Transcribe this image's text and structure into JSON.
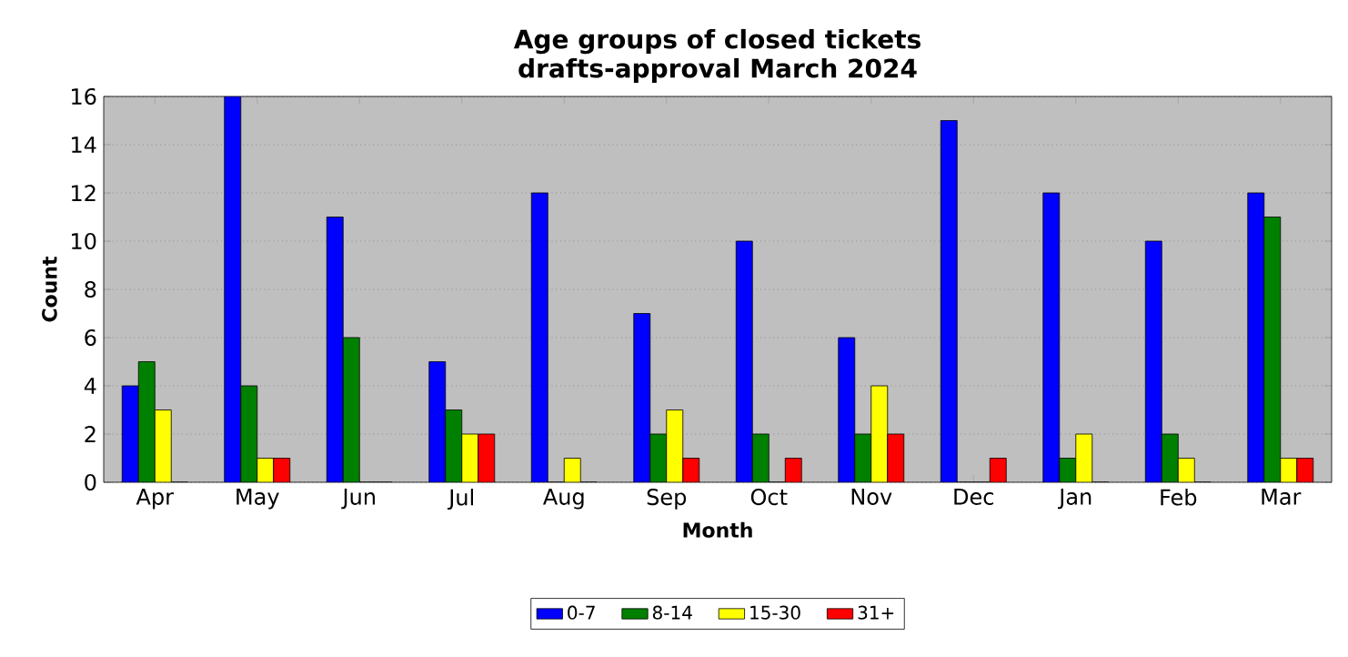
{
  "chart_data": {
    "type": "bar",
    "title": "Age groups of closed tickets",
    "subtitle": "drafts-approval March 2024",
    "xlabel": "Month",
    "ylabel": "Count",
    "categories": [
      "Apr",
      "May",
      "Jun",
      "Jul",
      "Aug",
      "Sep",
      "Oct",
      "Nov",
      "Dec",
      "Jan",
      "Feb",
      "Mar"
    ],
    "series": [
      {
        "name": "0-7",
        "color": "#0000ff",
        "values": [
          4,
          16,
          11,
          5,
          12,
          7,
          10,
          6,
          15,
          12,
          10,
          12
        ]
      },
      {
        "name": "8-14",
        "color": "#008000",
        "values": [
          5,
          4,
          6,
          3,
          0,
          2,
          2,
          2,
          0,
          1,
          2,
          11
        ]
      },
      {
        "name": "15-30",
        "color": "#ffff00",
        "values": [
          3,
          1,
          0,
          2,
          1,
          3,
          0,
          4,
          0,
          2,
          1,
          1
        ]
      },
      {
        "name": "31+",
        "color": "#ff0000",
        "values": [
          0,
          1,
          0,
          2,
          0,
          1,
          1,
          2,
          1,
          0,
          0,
          1
        ]
      }
    ],
    "ylim": [
      0,
      16
    ],
    "yticks": [
      0,
      2,
      4,
      6,
      8,
      10,
      12,
      14,
      16
    ],
    "grid": "y",
    "legend": "bottom"
  }
}
